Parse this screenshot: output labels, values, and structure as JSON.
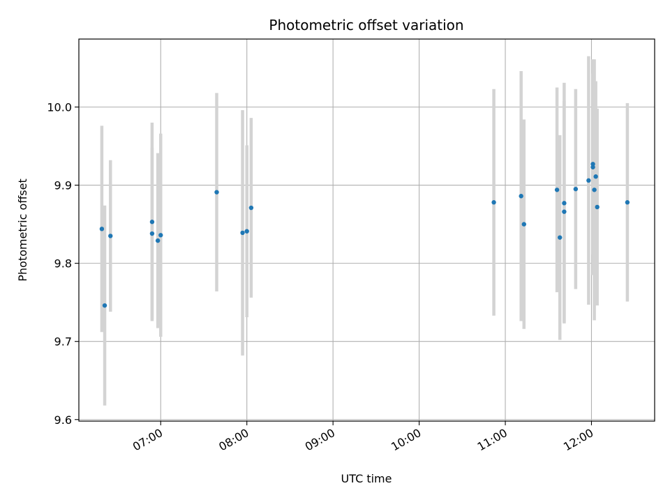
{
  "chart_data": {
    "type": "scatter",
    "title": "Photometric offset variation",
    "xlabel": "UTC time",
    "ylabel": "Photometric offset",
    "x_axis": {
      "kind": "time",
      "range": [
        "06:03",
        "12:44"
      ]
    },
    "ylim": [
      9.598,
      10.087
    ],
    "grid": true,
    "x_ticks": [
      "07:00",
      "08:00",
      "09:00",
      "10:00",
      "11:00",
      "12:00"
    ],
    "y_ticks": [
      "9.6",
      "9.7",
      "9.8",
      "9.9",
      "10.0"
    ],
    "colors": {
      "point": "#1f77b4",
      "errorbar": "#d3d3d3",
      "grid": "#b0b0b0"
    },
    "points": [
      {
        "t": "06:19",
        "y": 9.844,
        "err": 0.132
      },
      {
        "t": "06:21",
        "y": 9.746,
        "err": 0.128
      },
      {
        "t": "06:25",
        "y": 9.835,
        "err": 0.097
      },
      {
        "t": "06:54",
        "y": 9.853,
        "err": 0.127
      },
      {
        "t": "06:54",
        "y": 9.838,
        "err": 0.11
      },
      {
        "t": "06:58",
        "y": 9.829,
        "err": 0.112
      },
      {
        "t": "07:00",
        "y": 9.836,
        "err": 0.13
      },
      {
        "t": "07:39",
        "y": 9.891,
        "err": 0.127
      },
      {
        "t": "07:57",
        "y": 9.839,
        "err": 0.157
      },
      {
        "t": "08:00",
        "y": 9.841,
        "err": 0.11
      },
      {
        "t": "08:03",
        "y": 9.871,
        "err": 0.115
      },
      {
        "t": "10:52",
        "y": 9.878,
        "err": 0.145
      },
      {
        "t": "11:11",
        "y": 9.886,
        "err": 0.16
      },
      {
        "t": "11:13",
        "y": 9.85,
        "err": 0.134
      },
      {
        "t": "11:36",
        "y": 9.894,
        "err": 0.131
      },
      {
        "t": "11:38",
        "y": 9.833,
        "err": 0.131
      },
      {
        "t": "11:41",
        "y": 9.877,
        "err": 0.154
      },
      {
        "t": "11:41",
        "y": 9.866,
        "err": 0.142
      },
      {
        "t": "11:49",
        "y": 9.895,
        "err": 0.128
      },
      {
        "t": "11:58",
        "y": 9.906,
        "err": 0.159
      },
      {
        "t": "12:01",
        "y": 9.927,
        "err": 0.116
      },
      {
        "t": "12:01",
        "y": 9.923,
        "err": 0.138
      },
      {
        "t": "12:02",
        "y": 9.894,
        "err": 0.167
      },
      {
        "t": "12:03",
        "y": 9.911,
        "err": 0.122
      },
      {
        "t": "12:04",
        "y": 9.872,
        "err": 0.126
      },
      {
        "t": "12:25",
        "y": 9.878,
        "err": 0.127
      }
    ]
  }
}
